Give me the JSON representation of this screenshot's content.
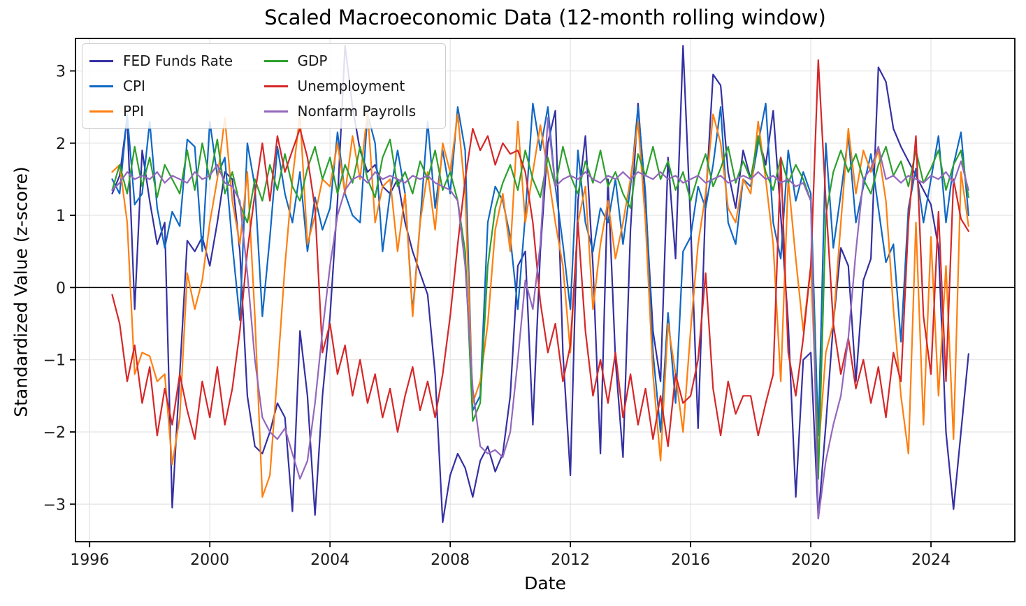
{
  "chart_data": {
    "type": "line",
    "title": "Scaled Macroeconomic Data (12-month rolling window)",
    "xlabel": "Date",
    "ylabel": "Standardized Value (z-score)",
    "grid": true,
    "zero_line": true,
    "legend_position": "upper-left",
    "xlim": [
      1995.53,
      2026.79
    ],
    "ylim": [
      -3.52,
      3.45
    ],
    "x_ticks": [
      1996,
      2000,
      2004,
      2008,
      2012,
      2016,
      2020,
      2024
    ],
    "x_tick_labels": [
      "1996",
      "2000",
      "2004",
      "2008",
      "2012",
      "2016",
      "2020",
      "2024"
    ],
    "y_ticks": [
      3,
      2,
      1,
      0,
      -1,
      -2,
      -3
    ],
    "y_tick_labels": [
      "3",
      "2",
      "1",
      "0",
      "−1",
      "−2",
      "−3"
    ],
    "x": [
      1996.75,
      1997.0,
      1997.25,
      1997.5,
      1997.75,
      1998.0,
      1998.25,
      1998.5,
      1998.75,
      1999.0,
      1999.25,
      1999.5,
      1999.75,
      2000.0,
      2000.25,
      2000.5,
      2000.75,
      2001.0,
      2001.25,
      2001.5,
      2001.75,
      2002.0,
      2002.25,
      2002.5,
      2002.75,
      2003.0,
      2003.25,
      2003.5,
      2003.75,
      2004.0,
      2004.25,
      2004.5,
      2004.75,
      2005.0,
      2005.25,
      2005.5,
      2005.75,
      2006.0,
      2006.25,
      2006.5,
      2006.75,
      2007.0,
      2007.25,
      2007.5,
      2007.75,
      2008.0,
      2008.25,
      2008.5,
      2008.75,
      2009.0,
      2009.25,
      2009.5,
      2009.75,
      2010.0,
      2010.25,
      2010.5,
      2010.75,
      2011.0,
      2011.25,
      2011.5,
      2011.75,
      2012.0,
      2012.25,
      2012.5,
      2012.75,
      2013.0,
      2013.25,
      2013.5,
      2013.75,
      2014.0,
      2014.25,
      2014.5,
      2014.75,
      2015.0,
      2015.25,
      2015.5,
      2015.75,
      2016.0,
      2016.25,
      2016.5,
      2016.75,
      2017.0,
      2017.25,
      2017.5,
      2017.75,
      2018.0,
      2018.25,
      2018.5,
      2018.75,
      2019.0,
      2019.25,
      2019.5,
      2019.75,
      2020.0,
      2020.25,
      2020.5,
      2020.75,
      2021.0,
      2021.25,
      2021.5,
      2021.75,
      2022.0,
      2022.25,
      2022.5,
      2022.75,
      2023.0,
      2023.25,
      2023.5,
      2023.75,
      2024.0,
      2024.25,
      2024.5,
      2024.75,
      2025.0,
      2025.25
    ],
    "series": [
      {
        "name": "FED Funds Rate",
        "color": "#3430a3",
        "values": [
          1.3,
          1.55,
          2.35,
          -0.3,
          1.9,
          1.2,
          0.6,
          0.9,
          -3.05,
          -1.2,
          0.65,
          0.5,
          0.7,
          0.3,
          0.9,
          1.6,
          1.5,
          0.5,
          -1.5,
          -2.2,
          -2.3,
          -2.0,
          -1.6,
          -1.8,
          -3.1,
          -0.6,
          -1.5,
          -3.15,
          -1.5,
          -0.4,
          1.2,
          3.35,
          2.5,
          1.9,
          1.6,
          1.7,
          1.4,
          1.3,
          1.5,
          0.9,
          0.5,
          0.2,
          -0.1,
          -1.2,
          -3.25,
          -2.6,
          -2.3,
          -2.5,
          -2.9,
          -2.4,
          -2.2,
          -2.55,
          -2.3,
          -1.5,
          0.3,
          0.5,
          -1.9,
          0.5,
          2.0,
          2.45,
          -0.9,
          -2.6,
          1.2,
          2.1,
          0.3,
          -2.3,
          1.5,
          -1.0,
          -2.35,
          0.8,
          2.55,
          1.2,
          -0.6,
          -1.3,
          1.8,
          0.4,
          3.35,
          0.9,
          -1.95,
          1.2,
          2.95,
          2.8,
          1.6,
          1.1,
          1.9,
          1.5,
          2.1,
          1.7,
          2.45,
          1.0,
          -0.5,
          -2.9,
          -1.0,
          -0.9,
          -3.2,
          -1.9,
          -0.5,
          0.55,
          0.3,
          -1.3,
          0.1,
          0.4,
          3.05,
          2.85,
          2.2,
          1.95,
          1.75,
          1.55,
          1.35,
          1.15,
          0.55,
          -2.0,
          -3.07,
          -2.0,
          -0.92
        ]
      },
      {
        "name": "CPI",
        "color": "#0f68c5",
        "values": [
          1.5,
          1.3,
          2.4,
          1.15,
          1.3,
          2.3,
          1.1,
          0.55,
          1.05,
          0.85,
          2.05,
          1.95,
          0.5,
          2.3,
          1.55,
          1.8,
          0.6,
          -0.45,
          2.0,
          1.4,
          -0.4,
          0.7,
          1.95,
          1.3,
          0.9,
          1.6,
          0.5,
          1.25,
          0.8,
          1.1,
          2.15,
          1.3,
          1.0,
          0.9,
          2.4,
          2.0,
          0.5,
          1.3,
          1.9,
          1.3,
          -0.35,
          0.9,
          2.3,
          1.1,
          1.9,
          1.3,
          2.5,
          1.9,
          -1.7,
          -1.5,
          0.9,
          1.4,
          1.2,
          0.7,
          -0.3,
          1.0,
          2.55,
          1.9,
          2.5,
          1.4,
          0.6,
          -0.3,
          1.9,
          0.9,
          0.5,
          1.1,
          0.9,
          1.5,
          0.6,
          1.4,
          2.5,
          1.3,
          -0.9,
          -2.0,
          -0.35,
          -1.6,
          0.5,
          0.7,
          1.4,
          1.1,
          1.7,
          2.5,
          0.9,
          0.6,
          1.5,
          1.4,
          2.0,
          2.55,
          0.9,
          0.4,
          1.9,
          1.2,
          1.6,
          1.3,
          -2.05,
          2.0,
          0.55,
          1.3,
          2.1,
          0.9,
          1.4,
          1.85,
          1.1,
          0.35,
          0.6,
          -0.75,
          1.1,
          1.65,
          0.9,
          1.5,
          2.1,
          0.9,
          1.7,
          2.15,
          1.0
        ]
      },
      {
        "name": "PPI",
        "color": "#ff7f0e",
        "values": [
          1.6,
          1.7,
          0.9,
          -1.2,
          -0.9,
          -0.95,
          -1.3,
          -1.2,
          -2.45,
          -1.8,
          0.2,
          -0.3,
          0.1,
          0.9,
          1.5,
          2.35,
          1.2,
          0.6,
          1.6,
          -0.4,
          -2.9,
          -2.6,
          -1.2,
          0.3,
          1.5,
          2.4,
          0.6,
          1.0,
          1.5,
          1.4,
          2.0,
          1.3,
          2.1,
          1.5,
          2.45,
          0.9,
          1.4,
          1.5,
          0.5,
          1.3,
          -0.4,
          0.9,
          1.6,
          0.8,
          2.0,
          1.6,
          2.4,
          1.3,
          -1.6,
          -1.3,
          -0.5,
          0.8,
          1.3,
          0.5,
          2.3,
          0.9,
          1.6,
          2.25,
          1.6,
          0.9,
          0.3,
          -0.9,
          0.9,
          1.4,
          -0.3,
          0.6,
          1.2,
          0.4,
          0.9,
          1.5,
          2.3,
          0.9,
          -1.2,
          -2.4,
          -0.5,
          -1.2,
          -2.0,
          -0.6,
          0.6,
          1.3,
          2.4,
          2.0,
          1.1,
          0.9,
          1.5,
          1.3,
          2.3,
          1.5,
          0.6,
          -1.3,
          1.5,
          0.4,
          -0.6,
          0.3,
          -2.3,
          -0.9,
          -0.5,
          0.9,
          2.2,
          1.3,
          1.9,
          1.6,
          1.9,
          1.2,
          -0.3,
          -1.5,
          -2.3,
          0.9,
          -1.9,
          0.7,
          -1.5,
          0.3,
          -2.1,
          1.6,
          0.85
        ]
      },
      {
        "name": "GDP",
        "color": "#2ca02c",
        "values": [
          1.35,
          1.7,
          1.3,
          1.95,
          1.4,
          1.8,
          1.25,
          1.7,
          1.5,
          1.3,
          1.9,
          1.35,
          2.0,
          1.5,
          2.05,
          1.3,
          1.6,
          1.15,
          0.9,
          1.5,
          1.2,
          1.7,
          1.35,
          1.85,
          1.4,
          1.2,
          1.65,
          1.95,
          1.5,
          1.8,
          1.3,
          1.7,
          1.45,
          1.95,
          1.5,
          1.25,
          1.8,
          2.05,
          1.4,
          1.6,
          1.3,
          1.75,
          1.5,
          1.9,
          1.35,
          1.6,
          1.2,
          0.5,
          -1.85,
          -1.6,
          0.3,
          1.1,
          1.45,
          1.7,
          1.35,
          1.9,
          1.5,
          1.25,
          1.8,
          1.4,
          1.95,
          1.55,
          1.3,
          1.75,
          1.45,
          1.9,
          1.4,
          1.6,
          1.3,
          1.1,
          1.85,
          1.55,
          1.95,
          1.5,
          1.75,
          1.35,
          1.6,
          1.2,
          1.55,
          1.85,
          1.4,
          1.65,
          1.95,
          1.45,
          1.75,
          1.5,
          2.1,
          1.6,
          1.35,
          1.8,
          1.45,
          1.7,
          1.5,
          1.2,
          -2.65,
          1.0,
          1.6,
          1.9,
          1.6,
          1.85,
          1.5,
          1.3,
          1.7,
          1.95,
          1.55,
          1.75,
          1.4,
          1.9,
          1.45,
          1.65,
          1.9,
          1.35,
          1.7,
          1.9,
          1.25
        ]
      },
      {
        "name": "Unemployment",
        "color": "#d62728",
        "values": [
          -0.1,
          -0.5,
          -1.3,
          -0.8,
          -1.6,
          -1.1,
          -2.05,
          -1.4,
          -1.9,
          -1.2,
          -1.7,
          -2.1,
          -1.3,
          -1.8,
          -1.1,
          -1.9,
          -1.4,
          -0.6,
          0.5,
          1.3,
          2.0,
          1.2,
          2.1,
          1.6,
          1.9,
          2.2,
          1.8,
          1.1,
          -0.9,
          -0.5,
          -1.2,
          -0.8,
          -1.5,
          -1.0,
          -1.6,
          -1.2,
          -1.8,
          -1.4,
          -2.0,
          -1.5,
          -1.1,
          -1.7,
          -1.3,
          -1.8,
          -1.2,
          -0.4,
          0.6,
          1.5,
          2.2,
          1.9,
          2.1,
          1.7,
          2.0,
          1.85,
          1.9,
          1.6,
          0.9,
          -0.2,
          -0.9,
          -0.5,
          -1.3,
          -0.8,
          0.9,
          -0.6,
          -1.5,
          -1.0,
          -1.6,
          -0.9,
          -1.8,
          -1.2,
          -1.9,
          -1.4,
          -2.1,
          -1.5,
          -2.2,
          -1.2,
          -1.6,
          -1.5,
          -1.0,
          0.2,
          -1.4,
          -2.05,
          -1.3,
          -1.75,
          -1.5,
          -1.5,
          -2.05,
          -1.6,
          -1.2,
          1.8,
          -0.9,
          -1.5,
          -0.7,
          0.3,
          3.15,
          1.2,
          -0.5,
          -1.2,
          -0.7,
          -1.4,
          -1.0,
          -1.6,
          -1.1,
          -1.8,
          -0.9,
          -1.3,
          0.9,
          2.1,
          -0.4,
          -1.2,
          1.05,
          -1.3,
          1.5,
          0.95,
          0.78
        ]
      },
      {
        "name": "Nonfarm Payrolls",
        "color": "#9467bd",
        "values": [
          1.35,
          1.45,
          1.6,
          1.5,
          1.55,
          1.5,
          1.6,
          1.45,
          1.55,
          1.5,
          1.45,
          1.6,
          1.5,
          1.55,
          1.7,
          1.45,
          1.4,
          1.2,
          0.2,
          -1.0,
          -1.8,
          -2.0,
          -2.1,
          -1.95,
          -2.3,
          -2.65,
          -2.4,
          -1.6,
          -0.6,
          0.3,
          1.0,
          1.35,
          1.5,
          1.55,
          1.45,
          1.6,
          1.5,
          1.55,
          1.5,
          1.45,
          1.55,
          1.5,
          1.55,
          1.45,
          1.4,
          1.35,
          1.2,
          0.3,
          -1.4,
          -2.2,
          -2.3,
          -2.25,
          -2.35,
          -2.0,
          -1.0,
          0.1,
          -0.3,
          0.6,
          2.35,
          1.4,
          1.5,
          1.55,
          1.5,
          1.6,
          1.5,
          1.45,
          1.55,
          1.5,
          1.6,
          1.5,
          1.6,
          1.55,
          1.5,
          1.6,
          1.5,
          1.55,
          1.45,
          1.5,
          1.55,
          1.45,
          1.5,
          1.55,
          1.45,
          1.5,
          1.55,
          1.5,
          1.6,
          1.5,
          1.55,
          1.45,
          1.5,
          1.4,
          1.45,
          1.2,
          -3.2,
          -2.4,
          -1.9,
          -1.5,
          -0.7,
          0.5,
          1.5,
          1.65,
          1.95,
          1.5,
          1.55,
          1.45,
          1.55,
          1.5,
          1.45,
          1.55,
          1.5,
          1.6,
          1.45,
          1.75,
          1.35
        ]
      }
    ]
  },
  "style": {
    "grid_color": "#e3e3e3",
    "axis_color": "#000000",
    "tick_label_color": "#1a1a1a",
    "line_width": 2.2
  }
}
